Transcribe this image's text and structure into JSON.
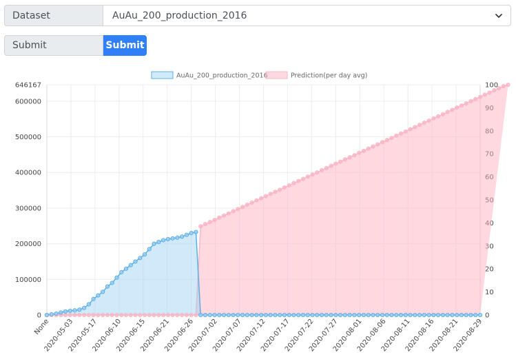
{
  "form": {
    "dataset_label": "Dataset",
    "dataset_value": "AuAu_200_production_2016",
    "submit_field_label": "Submit",
    "submit_button_label": "Submit"
  },
  "colors": {
    "series1_line": "#5dade2",
    "series1_fill": "rgba(154,208,245,0.45)",
    "series2_line": "#f5b8c8",
    "series2_fill": "rgba(255,177,193,0.5)",
    "button": "#2f80f6"
  },
  "chart_data": {
    "type": "area",
    "legend_position": "top",
    "grid": true,
    "x_tick_labels": [
      "None",
      "2020-05-03",
      "2020-05-17",
      "2020-06-10",
      "2020-06-15",
      "2020-06-21",
      "2020-06-26",
      "2020-07-02",
      "2020-07-07",
      "2020-07-12",
      "2020-07-17",
      "2020-07-22",
      "2020-07-27",
      "2020-08-01",
      "2020-08-06",
      "2020-08-11",
      "2020-08-16",
      "2020-08-21",
      "2020-08-29"
    ],
    "y_left_ticks": [
      "0",
      "100000",
      "200000",
      "300000",
      "400000",
      "500000",
      "600000",
      "646167"
    ],
    "y_left_range": [
      0,
      646167
    ],
    "y_right_ticks": [
      "0",
      "10",
      "20",
      "30",
      "40",
      "50",
      "60",
      "70",
      "80",
      "90",
      "100"
    ],
    "y_right_range": [
      0,
      100
    ],
    "series": [
      {
        "name": "AuAu_200_production_2016",
        "axis": "left",
        "values": [
          0,
          2000,
          4000,
          7000,
          10000,
          12000,
          13000,
          15000,
          20000,
          30000,
          45000,
          55000,
          65000,
          80000,
          90000,
          105000,
          120000,
          130000,
          140000,
          150000,
          160000,
          170000,
          185000,
          200000,
          205000,
          210000,
          213000,
          215000,
          217000,
          220000,
          225000,
          230000,
          233000,
          0,
          0,
          0,
          0,
          0,
          0,
          0,
          0,
          0,
          0,
          0,
          0,
          0,
          0,
          0,
          0,
          0,
          0,
          0,
          0,
          0,
          0,
          0,
          0,
          0,
          0,
          0,
          0,
          0,
          0,
          0,
          0,
          0,
          0,
          0,
          0,
          0,
          0,
          0,
          0,
          0,
          0,
          0,
          0,
          0,
          0,
          0,
          0,
          0,
          0,
          0,
          0,
          0,
          0,
          0,
          0,
          0,
          0,
          0,
          0,
          0
        ]
      },
      {
        "name": "Prediction(per day avg)",
        "axis": "right",
        "values": [
          0,
          0,
          0,
          0,
          0,
          0,
          0,
          0,
          0,
          0,
          0,
          0,
          0,
          0,
          0,
          0,
          0,
          0,
          0,
          0,
          0,
          0,
          0,
          0,
          0,
          0,
          0,
          0,
          0,
          0,
          0,
          0,
          0,
          38.5,
          39.5,
          40.4,
          41.3,
          42.3,
          43.2,
          44.1,
          45.1,
          46.0,
          46.9,
          47.9,
          48.8,
          49.8,
          50.7,
          51.6,
          52.6,
          53.5,
          54.4,
          55.4,
          56.3,
          57.3,
          58.2,
          59.1,
          60.1,
          61.0,
          61.9,
          62.9,
          63.8,
          64.8,
          65.7,
          66.6,
          67.6,
          68.5,
          69.4,
          70.4,
          71.3,
          72.3,
          73.2,
          74.1,
          75.1,
          76.0,
          76.9,
          77.9,
          78.8,
          79.7,
          80.7,
          81.6,
          82.6,
          83.5,
          84.4,
          85.4,
          86.3,
          87.2,
          88.2,
          89.1,
          90.1,
          91.0,
          91.9,
          92.9,
          93.8,
          94.7,
          95.7,
          96.6,
          97.6,
          98.5,
          99.4,
          100
        ]
      }
    ]
  }
}
